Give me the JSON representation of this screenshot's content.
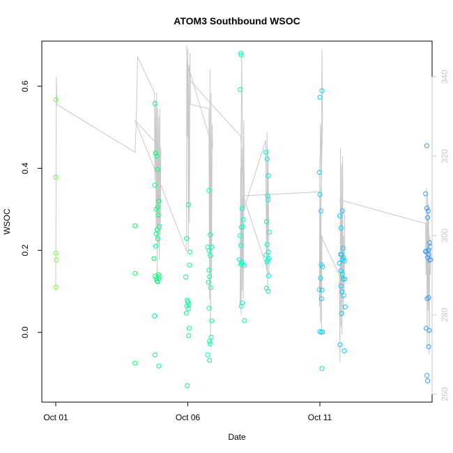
{
  "chart_data": {
    "type": "scatter",
    "title": "ATOM3 Southbound WSOC",
    "xlabel": "Date",
    "ylabel": "WSOC",
    "x_axis": {
      "type": "date",
      "ticks": [
        "Oct 01",
        "Oct 06",
        "Oct 11"
      ]
    },
    "left_axis": {
      "ticks": [
        "0.0",
        "0.2",
        "0.4",
        "0.6"
      ],
      "ylim": [
        -0.17,
        0.71
      ]
    },
    "right_axis": {
      "label": "",
      "ticks": [
        "260",
        "280",
        "300",
        "320",
        "340"
      ],
      "ylim": [
        258,
        349
      ],
      "color": "#c8c8c8"
    },
    "grid": false,
    "legend": "none",
    "series": [
      {
        "role": "points",
        "axis": "left",
        "marker": "open-circle",
        "color_scale": [
          "#66ff33",
          "#00ff66",
          "#00ffcc",
          "#00ccff",
          "#3399ff"
        ],
        "points": [
          [
            0.0,
            0.567
          ],
          [
            0.0,
            0.378
          ],
          [
            0.0,
            0.193
          ],
          [
            0.02,
            0.176
          ],
          [
            0.0,
            0.11
          ],
          [
            3.0,
            0.26
          ],
          [
            3.0,
            0.144
          ],
          [
            3.0,
            -0.075
          ],
          [
            3.75,
            0.558
          ],
          [
            3.78,
            0.437
          ],
          [
            3.82,
            0.43
          ],
          [
            3.85,
            0.397
          ],
          [
            3.75,
            0.359
          ],
          [
            3.9,
            0.32
          ],
          [
            3.86,
            0.305
          ],
          [
            3.8,
            0.3
          ],
          [
            3.88,
            0.286
          ],
          [
            3.92,
            0.258
          ],
          [
            3.84,
            0.25
          ],
          [
            3.8,
            0.24
          ],
          [
            3.86,
            0.228
          ],
          [
            3.78,
            0.21
          ],
          [
            3.72,
            0.18
          ],
          [
            3.76,
            0.137
          ],
          [
            3.8,
            0.131
          ],
          [
            3.83,
            0.126
          ],
          [
            3.86,
            0.123
          ],
          [
            3.9,
            0.131
          ],
          [
            3.93,
            0.137
          ],
          [
            3.88,
            0.141
          ],
          [
            3.74,
            0.04
          ],
          [
            3.76,
            -0.055
          ],
          [
            3.9,
            -0.082
          ],
          [
            4.95,
            0.229
          ],
          [
            4.92,
            0.135
          ],
          [
            4.98,
            0.078
          ],
          [
            5.0,
            0.074
          ],
          [
            4.96,
            0.064
          ],
          [
            5.02,
            0.058
          ],
          [
            4.94,
            0.047
          ],
          [
            5.04,
            0.068
          ],
          [
            5.08,
            0.196
          ],
          [
            5.06,
            0.164
          ],
          [
            5.02,
            0.311
          ],
          [
            5.05,
            0.01
          ],
          [
            5.03,
            -0.008
          ],
          [
            4.98,
            -0.13
          ],
          [
            5.8,
            0.346
          ],
          [
            5.85,
            0.238
          ],
          [
            5.75,
            0.208
          ],
          [
            5.8,
            0.199
          ],
          [
            5.9,
            0.208
          ],
          [
            5.85,
            0.187
          ],
          [
            5.8,
            0.152
          ],
          [
            5.82,
            0.136
          ],
          [
            5.78,
            0.122
          ],
          [
            5.86,
            0.109
          ],
          [
            5.8,
            0.059
          ],
          [
            5.9,
            0.028
          ],
          [
            5.88,
            -0.012
          ],
          [
            5.82,
            -0.022
          ],
          [
            5.84,
            -0.028
          ],
          [
            5.75,
            -0.055
          ],
          [
            5.82,
            -0.068
          ],
          [
            7.0,
            0.681
          ],
          [
            7.02,
            0.676
          ],
          [
            6.98,
            0.592
          ],
          [
            7.05,
            0.302
          ],
          [
            7.1,
            0.275
          ],
          [
            7.08,
            0.258
          ],
          [
            7.02,
            0.256
          ],
          [
            6.98,
            0.236
          ],
          [
            7.0,
            0.212
          ],
          [
            6.95,
            0.178
          ],
          [
            7.04,
            0.172
          ],
          [
            7.06,
            0.168
          ],
          [
            7.12,
            0.163
          ],
          [
            7.0,
            0.166
          ],
          [
            7.02,
            0.064
          ],
          [
            7.06,
            0.072
          ],
          [
            7.14,
            0.029
          ],
          [
            7.95,
            0.439
          ],
          [
            8.0,
            0.423
          ],
          [
            8.05,
            0.382
          ],
          [
            8.02,
            0.333
          ],
          [
            8.04,
            0.323
          ],
          [
            7.98,
            0.27
          ],
          [
            8.08,
            0.244
          ],
          [
            8.0,
            0.214
          ],
          [
            8.05,
            0.196
          ],
          [
            7.96,
            0.188
          ],
          [
            8.02,
            0.176
          ],
          [
            8.06,
            0.18
          ],
          [
            8.0,
            0.172
          ],
          [
            8.06,
            0.138
          ],
          [
            7.98,
            0.108
          ],
          [
            8.04,
            0.1
          ],
          [
            10.0,
            0.573
          ],
          [
            10.08,
            0.589
          ],
          [
            9.98,
            0.39
          ],
          [
            10.0,
            0.336
          ],
          [
            10.04,
            0.296
          ],
          [
            10.05,
            0.165
          ],
          [
            10.1,
            0.16
          ],
          [
            10.02,
            0.132
          ],
          [
            9.98,
            0.104
          ],
          [
            10.08,
            0.103
          ],
          [
            10.06,
            0.082
          ],
          [
            10.0,
            0.002
          ],
          [
            10.05,
            0.0
          ],
          [
            10.1,
            0.001
          ],
          [
            10.08,
            -0.088
          ],
          [
            10.75,
            0.284
          ],
          [
            10.85,
            0.296
          ],
          [
            10.8,
            0.254
          ],
          [
            10.88,
            0.205
          ],
          [
            10.82,
            0.19
          ],
          [
            10.78,
            0.19
          ],
          [
            10.9,
            0.182
          ],
          [
            10.86,
            0.178
          ],
          [
            10.92,
            0.174
          ],
          [
            10.74,
            0.169
          ],
          [
            10.8,
            0.15
          ],
          [
            10.85,
            0.142
          ],
          [
            10.88,
            0.13
          ],
          [
            10.94,
            0.13
          ],
          [
            10.8,
            0.113
          ],
          [
            10.84,
            0.099
          ],
          [
            10.9,
            0.09
          ],
          [
            10.96,
            0.062
          ],
          [
            10.82,
            0.046
          ],
          [
            10.76,
            -0.03
          ],
          [
            10.92,
            -0.045
          ],
          [
            14.05,
            0.455
          ],
          [
            14.0,
            0.338
          ],
          [
            14.05,
            0.303
          ],
          [
            14.1,
            0.296
          ],
          [
            14.08,
            0.28
          ],
          [
            14.15,
            0.219
          ],
          [
            14.18,
            0.208
          ],
          [
            14.1,
            0.2
          ],
          [
            14.02,
            0.198
          ],
          [
            14.12,
            0.189
          ],
          [
            14.08,
            0.183
          ],
          [
            14.16,
            0.176
          ],
          [
            14.2,
            0.177
          ],
          [
            14.0,
            0.197
          ],
          [
            14.12,
            0.085
          ],
          [
            14.06,
            0.082
          ],
          [
            14.02,
            0.01
          ],
          [
            14.14,
            0.005
          ],
          [
            14.12,
            -0.035
          ],
          [
            14.05,
            -0.105
          ],
          [
            14.08,
            -0.118
          ]
        ]
      },
      {
        "role": "line",
        "axis": "right",
        "color": "#c8c8c8",
        "path": [
          [
            0.0,
            286
          ],
          [
            0.02,
            340
          ],
          [
            0.05,
            333
          ],
          [
            3.0,
            321
          ],
          [
            3.05,
            329
          ],
          [
            3.1,
            345
          ],
          [
            3.74,
            336
          ],
          [
            3.75,
            314
          ],
          [
            3.78,
            334
          ],
          [
            3.8,
            299
          ],
          [
            3.82,
            336
          ],
          [
            3.84,
            290
          ],
          [
            3.86,
            332
          ],
          [
            3.88,
            297
          ],
          [
            3.9,
            330
          ],
          [
            3.92,
            294
          ],
          [
            3.94,
            332
          ],
          [
            3.96,
            300
          ],
          [
            3.98,
            322
          ],
          [
            3.0,
            329
          ],
          [
            3.85,
            315
          ],
          [
            4.95,
            296
          ],
          [
            4.96,
            348
          ],
          [
            4.98,
            325
          ],
          [
            5.0,
            347
          ],
          [
            5.02,
            296
          ],
          [
            5.04,
            343
          ],
          [
            5.06,
            303
          ],
          [
            5.08,
            346
          ],
          [
            5.1,
            333
          ],
          [
            5.8,
            332
          ],
          [
            5.82,
            284
          ],
          [
            5.84,
            342
          ],
          [
            5.86,
            272
          ],
          [
            5.88,
            336
          ],
          [
            5.9,
            290
          ],
          [
            5.92,
            328
          ],
          [
            5.94,
            322
          ],
          [
            4.96,
            344
          ],
          [
            5.1,
            339
          ],
          [
            7.0,
            325
          ],
          [
            7.1,
            313
          ],
          [
            6.98,
            282
          ],
          [
            7.0,
            317
          ],
          [
            7.02,
            280
          ],
          [
            7.04,
            322
          ],
          [
            7.06,
            286
          ],
          [
            7.08,
            310
          ],
          [
            7.1,
            284
          ],
          [
            7.12,
            312
          ],
          [
            7.0,
            301
          ],
          [
            7.04,
            346
          ],
          [
            7.1,
            303
          ],
          [
            7.12,
            329
          ],
          [
            7.14,
            307
          ],
          [
            7.95,
            324
          ],
          [
            7.98,
            291
          ],
          [
            8.0,
            326
          ],
          [
            8.02,
            286
          ],
          [
            8.04,
            322
          ],
          [
            8.06,
            304
          ],
          [
            8.08,
            290
          ],
          [
            7.1,
            310
          ],
          [
            10.0,
            311
          ],
          [
            10.02,
            328
          ],
          [
            10.04,
            324
          ],
          [
            10.06,
            312
          ],
          [
            10.08,
            347
          ],
          [
            10.1,
            330
          ],
          [
            9.98,
            282
          ],
          [
            10.0,
            320
          ],
          [
            10.02,
            278
          ],
          [
            10.04,
            312
          ],
          [
            10.06,
            276
          ],
          [
            10.08,
            300
          ],
          [
            10.1,
            299
          ],
          [
            10.74,
            290
          ],
          [
            10.76,
            268
          ],
          [
            10.78,
            322
          ],
          [
            10.8,
            277
          ],
          [
            10.82,
            318
          ],
          [
            10.84,
            275
          ],
          [
            10.86,
            320
          ],
          [
            10.88,
            280
          ],
          [
            10.9,
            300
          ],
          [
            10.92,
            286
          ],
          [
            10.94,
            305
          ],
          [
            10.75,
            309
          ],
          [
            14.0,
            303
          ],
          [
            14.02,
            290
          ],
          [
            14.04,
            312
          ],
          [
            14.06,
            272
          ],
          [
            14.08,
            310
          ],
          [
            14.1,
            281
          ],
          [
            14.12,
            308
          ],
          [
            14.14,
            270
          ],
          [
            14.16,
            300
          ],
          [
            14.18,
            290
          ],
          [
            14.2,
            297
          ]
        ]
      }
    ]
  }
}
